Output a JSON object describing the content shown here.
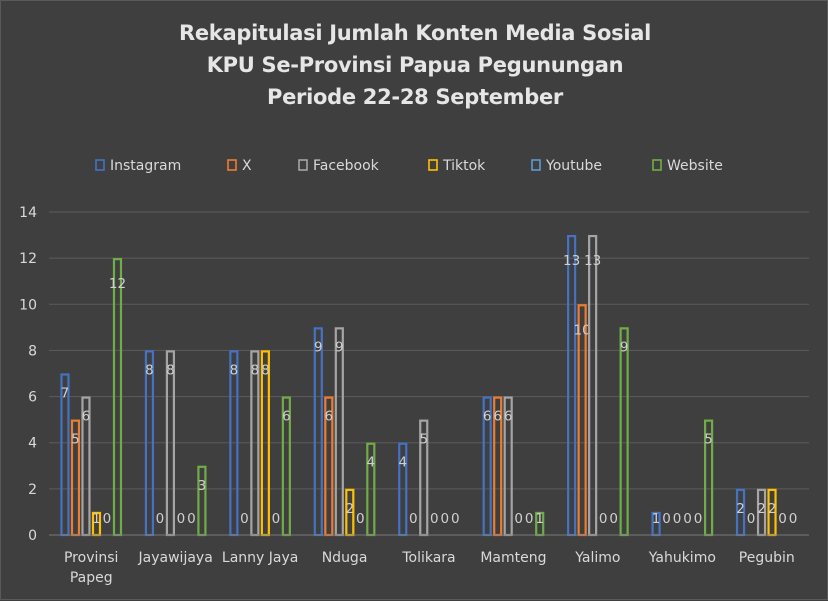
{
  "chart_data": {
    "type": "bar",
    "title_lines": [
      "Rekapitulasi Jumlah Konten Media Sosial",
      "KPU Se-Provinsi Papua Pegunungan",
      "Periode 22-28 September"
    ],
    "categories": [
      "Provinsi Papeg",
      "Jayawijaya",
      "Lanny Jaya",
      "Nduga",
      "Tolikara",
      "Mamteng",
      "Yalimo",
      "Yahukimo",
      "Pegubin"
    ],
    "category_lines": [
      [
        "Provinsi",
        "Papeg"
      ],
      [
        "Jayawijaya"
      ],
      [
        "Lanny Jaya"
      ],
      [
        "Nduga"
      ],
      [
        "Tolikara"
      ],
      [
        "Mamteng"
      ],
      [
        "Yalimo"
      ],
      [
        "Yahukimo"
      ],
      [
        "Pegubin"
      ]
    ],
    "series": [
      {
        "name": "Instagram",
        "color": "#4472c4",
        "values": [
          7,
          8,
          8,
          9,
          4,
          6,
          13,
          1,
          2
        ]
      },
      {
        "name": "X",
        "color": "#ed7d31",
        "values": [
          5,
          0,
          0,
          6,
          0,
          6,
          10,
          0,
          0
        ]
      },
      {
        "name": "Facebook",
        "color": "#a5a5a5",
        "values": [
          6,
          8,
          8,
          9,
          5,
          6,
          13,
          0,
          2
        ]
      },
      {
        "name": "Tiktok",
        "color": "#ffc000",
        "values": [
          1,
          0,
          8,
          2,
          0,
          0,
          0,
          0,
          2
        ]
      },
      {
        "name": "Youtube",
        "color": "#5b9bd5",
        "values": [
          0,
          0,
          0,
          0,
          0,
          0,
          0,
          0,
          0
        ]
      },
      {
        "name": "Website",
        "color": "#70ad47",
        "values": [
          12,
          3,
          6,
          4,
          0,
          1,
          9,
          5,
          0
        ]
      }
    ],
    "ylim": [
      0,
      14
    ],
    "yticks": [
      0,
      2,
      4,
      6,
      8,
      10,
      12,
      14
    ],
    "xlabel": "",
    "ylabel": "",
    "grid": true,
    "legend_position": "top"
  }
}
